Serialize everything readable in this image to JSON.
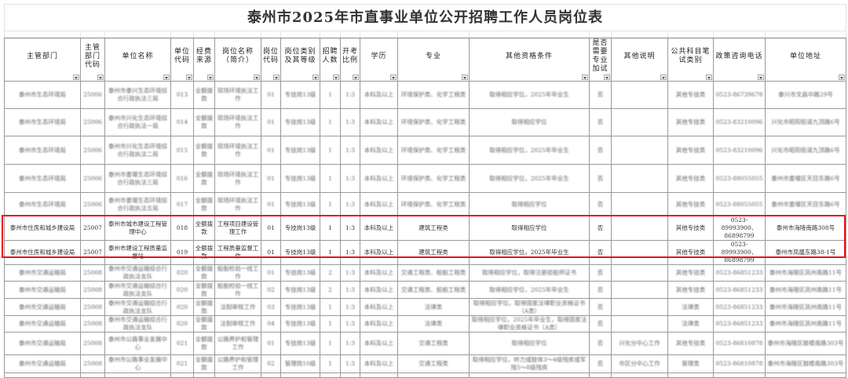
{
  "title": "泰州市2025年市直事业单位公开招聘工作人员岗位表",
  "headers": [
    "主管部门",
    "主管部门代码",
    "单位名称",
    "单位代码",
    "经费来源",
    "岗位名称（简介）",
    "岗位代码",
    "岗位类别及其等级",
    "招聘人数",
    "开考比例",
    "学历",
    "专业",
    "其他资格条件",
    "是否需要专业加试",
    "其他说明",
    "公共科目笔试类别",
    "政策咨询电话",
    "单位地址"
  ],
  "highlight_color": "#e3141b",
  "rows": [
    {
      "blurred": true,
      "cells": [
        "泰州市生态环境局",
        "25006",
        "泰州市泰兴生态环境综合行政执法三局",
        "013",
        "全额拨款",
        "现场环境执法工作",
        "01",
        "专技岗13级",
        "1",
        "1:3",
        "本科及以上",
        "环境保护类、化学工程类",
        "取得相应学位，2025年毕业生",
        "否",
        "",
        "其他专技类",
        "0523-86739678",
        "泰兴市文昌中路29号"
      ]
    },
    {
      "blurred": true,
      "cells": [
        "泰州市生态环境局",
        "25006",
        "泰州市兴化生态环境综合行政执法一局",
        "014",
        "全额拨款",
        "现场环境执法工作",
        "01",
        "专技岗13级",
        "1",
        "1:3",
        "本科及以上",
        "环境保护类、化学工程类",
        "取得相应学位",
        "否",
        "",
        "其他专技类",
        "0523-83210096",
        "兴化市昭阳街道九顶路6号"
      ]
    },
    {
      "blurred": true,
      "cells": [
        "泰州市生态环境局",
        "25006",
        "泰州市兴化生态环境综合行政执法二局",
        "015",
        "全额拨款",
        "现场环境执法工作",
        "01",
        "专技岗13级",
        "1",
        "1:3",
        "本科及以上",
        "环境保护类、化学工程类",
        "取得相应学位，2025年毕业生",
        "否",
        "",
        "其他专技类",
        "0523-83210096",
        "兴化市昭阳街道九顶路6号"
      ]
    },
    {
      "blurred": true,
      "cells": [
        "泰州市生态环境局",
        "25006",
        "泰州市姜堰生态环境综合行政执法三局",
        "016",
        "全额拨款",
        "现场环境执法工作",
        "01",
        "专技岗13级",
        "1",
        "1:3",
        "本科及以上",
        "环境保护类、化学工程类",
        "取得相应学位，2025年毕业生",
        "否",
        "",
        "其他专技类",
        "0523-88055055",
        "泰州市姜堰区天目东路6号"
      ]
    },
    {
      "blurred": true,
      "cells": [
        "泰州市生态环境局",
        "25006",
        "泰州市姜堰生态环境综合行政执法五局",
        "017",
        "全额拨款",
        "现场环境执法工作",
        "01",
        "专技岗13级",
        "1",
        "1:3",
        "本科及以上",
        "环境保护类、化学工程类",
        "取得相应学位",
        "否",
        "",
        "其他专技类",
        "0523-88055055",
        "泰州市姜堰区天目东路6号"
      ]
    },
    {
      "blurred": false,
      "cells": [
        "泰州市住房和城乡建设局",
        "25007",
        "泰州市城市建设工程管理中心",
        "018",
        "全额拨款",
        "工程项目建设管理工作",
        "01",
        "专技岗13级",
        "1",
        "1:3",
        "本科及以上",
        "建筑工程类",
        "取得相应学位",
        "否",
        "",
        "其他专技类",
        "0523-89993900、86898799",
        "泰州市海陵南路308号"
      ]
    },
    {
      "blurred": false,
      "cells": [
        "泰州市住房和城乡建设局",
        "25007",
        "泰州市建设工程质量监督站",
        "019",
        "全额拨款",
        "工程质量监督工作",
        "01",
        "专技岗13级",
        "1",
        "1:3",
        "本科及以上",
        "建筑工程类",
        "取得相应学位，2025年毕业生",
        "否",
        "",
        "其他专技类",
        "0523-89993900、86898799",
        "泰州市凤凰东路38-1号"
      ]
    },
    {
      "blurred": true,
      "cells": [
        "泰州市交通运输局",
        "25008",
        "泰州市交通运输综合行政执法支队",
        "020",
        "全额拨款",
        "船舶检验一线工作",
        "01",
        "专技岗13级",
        "2",
        "1:3",
        "本科及以上",
        "交通工程类、船舶工程类",
        "取得相应学位，取得注册验船师证书",
        "否",
        "",
        "其他专技类",
        "0523-86851233",
        "泰州市海陵区凤州南路11号"
      ]
    },
    {
      "blurred": true,
      "cells": [
        "泰州市交通运输局",
        "25008",
        "泰州市交通运输综合行政执法支队",
        "020",
        "全额拨款",
        "船舶检验一线工作",
        "02",
        "专技岗13级",
        "2",
        "1:3",
        "本科及以上",
        "交通工程类、船舶工程类",
        "取得相应学位，2025年毕业生",
        "否",
        "",
        "其他专技类",
        "0523-86851233",
        "泰州市海陵区凤州南路11号"
      ]
    },
    {
      "blurred": true,
      "cells": [
        "泰州市交通运输局",
        "25008",
        "泰州市交通运输综合行政执法支队",
        "020",
        "全额拨款",
        "法制审核工作",
        "03",
        "专技岗13级",
        "1",
        "1:3",
        "本科及以上",
        "法律类",
        "取得相应学位，取得国家法律职业资格证书（A类）",
        "否",
        "",
        "法律类",
        "0523-86851233",
        "泰州市海陵区凤州南路11号"
      ]
    },
    {
      "blurred": true,
      "cells": [
        "泰州市交通运输局",
        "25008",
        "泰州市交通运输综合行政执法支队",
        "020",
        "全额拨款",
        "法制审核工作",
        "04",
        "专技岗13级",
        "1",
        "1:3",
        "本科及以上",
        "法律类",
        "取得相应学位，2025年毕业生，取得国家法律职业资格证书（A类）",
        "否",
        "",
        "法律类",
        "0523-86851233",
        "泰州市海陵区凤州南路11号"
      ]
    },
    {
      "blurred": true,
      "cells": [
        "泰州市交通运输局",
        "25008",
        "泰州市公路事业发展中心",
        "021",
        "全额拨款",
        "公路养护和管理工作",
        "01",
        "专技岗13级",
        "1",
        "1:3",
        "本科及以上",
        "交通工程类",
        "取得相应学位",
        "否",
        "兴化分中心工作",
        "其他专技类",
        "0523-86810878",
        "泰州市海陵区鼓楼南路303号"
      ]
    },
    {
      "blurred": true,
      "cells": [
        "泰州市交通运输局",
        "25008",
        "泰州市公路事业发展中心",
        "021",
        "全额拨款",
        "公路养护和管理工作",
        "02",
        "管理岗10级",
        "1",
        "1:3",
        "本科及以上",
        "交通工程类",
        "取得相应学位，听力或肢体3～4级残疾或军残5～8级残疾",
        "否",
        "市区分中心工作",
        "管理类",
        "0523-86810878",
        "泰州市海陵区鼓楼南路303号"
      ]
    }
  ]
}
